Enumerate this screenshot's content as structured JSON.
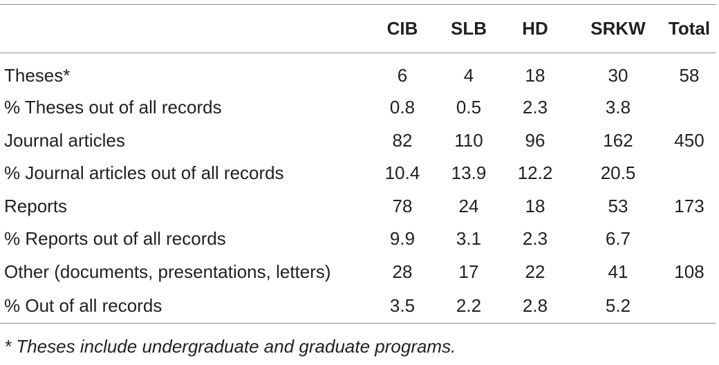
{
  "table": {
    "columns": [
      "",
      "CIB",
      "SLB",
      "HD",
      "SRKW",
      "Total"
    ],
    "rows": [
      {
        "label": "Theses*",
        "values": [
          "6",
          "4",
          "18",
          "30",
          "58"
        ]
      },
      {
        "label": "% Theses out of all records",
        "values": [
          "0.8",
          "0.5",
          "2.3",
          "3.8",
          ""
        ]
      },
      {
        "label": "Journal articles",
        "values": [
          "82",
          "110",
          "96",
          "162",
          "450"
        ]
      },
      {
        "label": "% Journal articles out of all records",
        "values": [
          "10.4",
          "13.9",
          "12.2",
          "20.5",
          ""
        ]
      },
      {
        "label": "Reports",
        "values": [
          "78",
          "24",
          "18",
          "53",
          "173"
        ]
      },
      {
        "label": "% Reports out of all records",
        "values": [
          "9.9",
          "3.1",
          "2.3",
          "6.7",
          ""
        ]
      },
      {
        "label": "Other (documents, presentations, letters)",
        "values": [
          "28",
          "17",
          "22",
          "41",
          "108"
        ]
      },
      {
        "label": "% Out of all records",
        "values": [
          "3.5",
          "2.2",
          "2.8",
          "5.2",
          ""
        ]
      }
    ]
  },
  "footnote": "* Theses include undergraduate and graduate programs."
}
